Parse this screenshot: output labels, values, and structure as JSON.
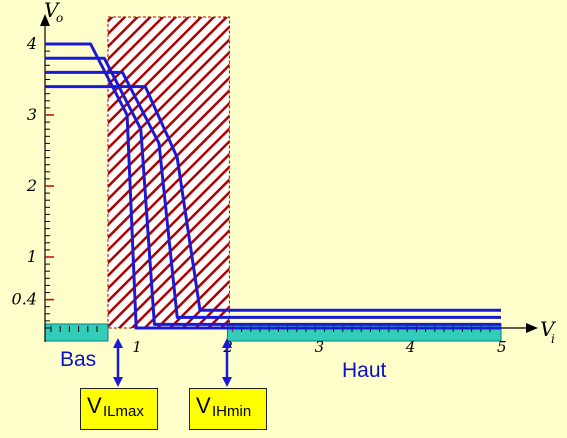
{
  "chart_data": {
    "type": "line",
    "x_axis": {
      "symbol": "V",
      "subscript": "i",
      "ticks": [
        "1",
        "2",
        "3",
        "4",
        "5"
      ],
      "xlim": [
        0,
        5
      ]
    },
    "y_axis": {
      "symbol": "V",
      "subscript": "o",
      "ticks": [
        "0.4",
        "1",
        "2",
        "3",
        "4"
      ],
      "ylim": [
        0,
        4
      ]
    },
    "series": [
      {
        "points": [
          [
            0,
            4.0
          ],
          [
            0.5,
            4.0
          ],
          [
            0.9,
            3.0
          ],
          [
            1.0,
            0.0
          ],
          [
            5,
            0.0
          ]
        ]
      },
      {
        "points": [
          [
            0,
            3.8
          ],
          [
            0.65,
            3.8
          ],
          [
            1.05,
            2.8
          ],
          [
            1.2,
            0.05
          ],
          [
            5,
            0.05
          ]
        ]
      },
      {
        "points": [
          [
            0,
            3.6
          ],
          [
            0.85,
            3.6
          ],
          [
            1.25,
            2.6
          ],
          [
            1.45,
            0.15
          ],
          [
            5,
            0.15
          ]
        ]
      },
      {
        "points": [
          [
            0,
            3.4
          ],
          [
            1.1,
            3.4
          ],
          [
            1.45,
            2.4
          ],
          [
            1.7,
            0.25
          ],
          [
            5,
            0.25
          ]
        ]
      }
    ],
    "forbidden_zone": {
      "x_from": 0.8,
      "x_to": 2.0
    },
    "region_low": "Bas",
    "region_high": "Haut",
    "markers": [
      {
        "main": "V",
        "sub": "ILmax",
        "x": 0.8
      },
      {
        "main": "V",
        "sub": "IHmin",
        "x": 2.0
      }
    ],
    "colors": {
      "background": "#ffffcc",
      "curves": "#1a1ad6",
      "hatch": "#b00000",
      "bar": "#33ccb8",
      "label": "#0a10c8",
      "marker_box": "#ffff00"
    }
  }
}
